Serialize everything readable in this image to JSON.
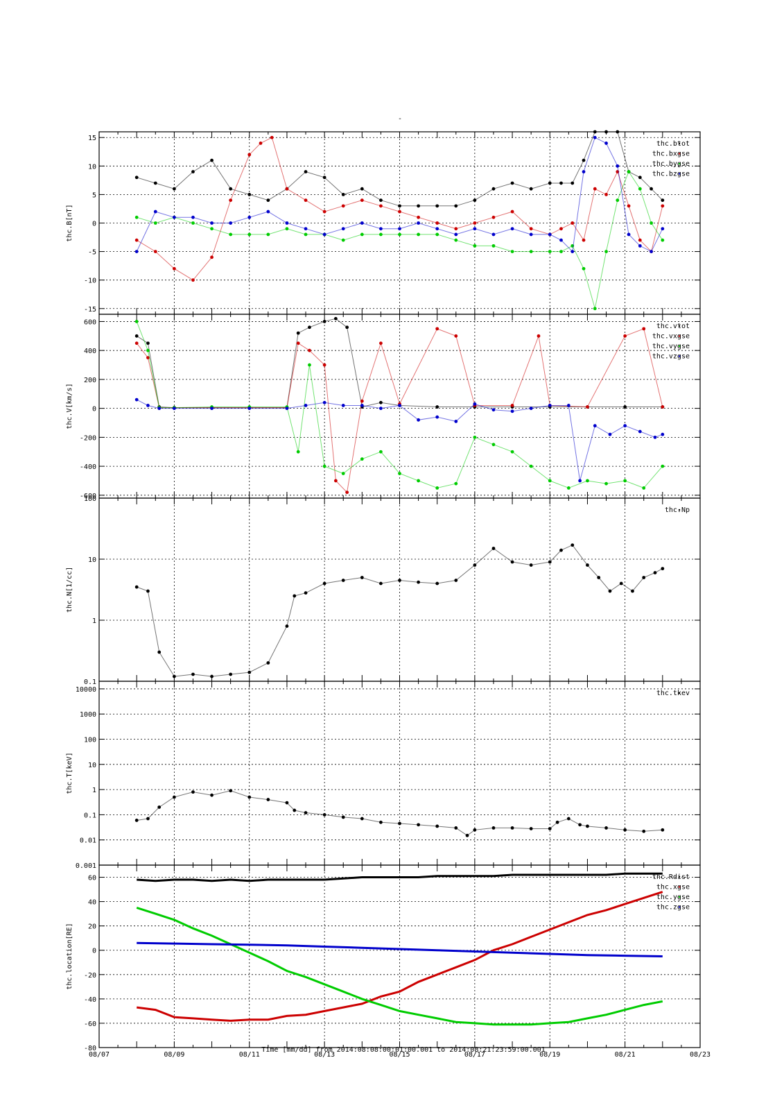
{
  "figure": {
    "title": "-",
    "xlabel": "Time [mm/dd]  from 2014:08:08:00:01:00.001  to  2014:08:21:23:59:00.001"
  },
  "chart_data": [
    {
      "type": "scatter",
      "ylabel": "thc.B[nT]",
      "yscale": "linear",
      "ylim": [
        -16,
        16
      ],
      "yticks": [
        -15,
        -10,
        -5,
        0,
        5,
        10,
        15
      ],
      "xlim": [
        7,
        23
      ],
      "xticks": [
        "08/07",
        "08/09",
        "08/11",
        "08/13",
        "08/15",
        "08/17",
        "08/19",
        "08/21",
        "08/23"
      ],
      "grid": true,
      "legend_position": "top-right",
      "series": [
        {
          "name": "thc.btot",
          "color": "#000000",
          "x": [
            8.0,
            8.5,
            9.0,
            9.5,
            10.0,
            10.5,
            11.0,
            11.5,
            12.0,
            12.5,
            13.0,
            13.5,
            14.0,
            14.5,
            15.0,
            15.5,
            16.0,
            16.5,
            17.0,
            17.5,
            18.0,
            18.5,
            19.0,
            19.3,
            19.6,
            19.9,
            20.2,
            20.5,
            20.8,
            21.1,
            21.4,
            21.7,
            22.0
          ],
          "y": [
            8,
            7,
            6,
            9,
            11,
            6,
            5,
            4,
            6,
            9,
            8,
            5,
            6,
            4,
            3,
            3,
            3,
            3,
            4,
            6,
            7,
            6,
            7,
            7,
            7,
            11,
            16,
            16,
            16,
            9,
            8,
            6,
            4
          ]
        },
        {
          "name": "thc.bxgse",
          "color": "#cc0000",
          "x": [
            8.0,
            8.5,
            9.0,
            9.5,
            10.0,
            10.5,
            11.0,
            11.3,
            11.6,
            12.0,
            12.5,
            13.0,
            13.5,
            14.0,
            14.5,
            15.0,
            15.5,
            16.0,
            16.5,
            17.0,
            17.5,
            18.0,
            18.5,
            19.0,
            19.3,
            19.6,
            19.9,
            20.2,
            20.5,
            20.8,
            21.1,
            21.4,
            21.7,
            22.0
          ],
          "y": [
            -3,
            -5,
            -8,
            -10,
            -6,
            4,
            12,
            14,
            15,
            6,
            4,
            2,
            3,
            4,
            3,
            2,
            1,
            0,
            -1,
            0,
            1,
            2,
            -1,
            -2,
            -1,
            0,
            -3,
            6,
            5,
            9,
            3,
            -3,
            -5,
            3
          ]
        },
        {
          "name": "thc.bygse",
          "color": "#00cc00",
          "x": [
            8.0,
            8.5,
            9.0,
            9.5,
            10.0,
            10.5,
            11.0,
            11.5,
            12.0,
            12.5,
            13.0,
            13.5,
            14.0,
            14.5,
            15.0,
            15.5,
            16.0,
            16.5,
            17.0,
            17.5,
            18.0,
            18.5,
            19.0,
            19.3,
            19.6,
            19.9,
            20.2,
            20.5,
            20.8,
            21.1,
            21.4,
            21.7,
            22.0
          ],
          "y": [
            1,
            0,
            1,
            0,
            -1,
            -2,
            -2,
            -2,
            -1,
            -2,
            -2,
            -3,
            -2,
            -2,
            -2,
            -2,
            -2,
            -3,
            -4,
            -4,
            -5,
            -5,
            -5,
            -5,
            -4,
            -8,
            -15,
            -5,
            4,
            9,
            6,
            0,
            -3
          ]
        },
        {
          "name": "thc.bzgse",
          "color": "#0000cc",
          "x": [
            8.0,
            8.5,
            9.0,
            9.5,
            10.0,
            10.5,
            11.0,
            11.5,
            12.0,
            12.5,
            13.0,
            13.5,
            14.0,
            14.5,
            15.0,
            15.5,
            16.0,
            16.5,
            17.0,
            17.5,
            18.0,
            18.5,
            19.0,
            19.3,
            19.6,
            19.9,
            20.2,
            20.5,
            20.8,
            21.1,
            21.4,
            21.7,
            22.0
          ],
          "y": [
            -5,
            2,
            1,
            1,
            0,
            0,
            1,
            2,
            0,
            -1,
            -2,
            -1,
            0,
            -1,
            -1,
            0,
            -1,
            -2,
            -1,
            -2,
            -1,
            -2,
            -2,
            -3,
            -5,
            9,
            15,
            14,
            10,
            -2,
            -4,
            -5,
            -1
          ]
        }
      ]
    },
    {
      "type": "scatter",
      "ylabel": "thc.V[km/s]",
      "yscale": "linear",
      "ylim": [
        -620,
        650
      ],
      "yticks": [
        -600,
        -400,
        -200,
        0,
        200,
        400,
        600
      ],
      "xlim": [
        7,
        23
      ],
      "grid": true,
      "legend_position": "top-right",
      "series": [
        {
          "name": "thc.vtot",
          "color": "#000000",
          "x": [
            8.0,
            8.3,
            8.6,
            9.0,
            10.0,
            11.0,
            12.0,
            12.3,
            12.6,
            13.0,
            13.3,
            13.6,
            14.0,
            14.5,
            15.0,
            16.0,
            17.0,
            18.0,
            19.0,
            20.0,
            21.0,
            22.0
          ],
          "y": [
            500,
            450,
            10,
            5,
            5,
            5,
            5,
            520,
            560,
            600,
            620,
            560,
            10,
            40,
            20,
            10,
            10,
            10,
            10,
            10,
            10,
            10
          ]
        },
        {
          "name": "thc.vxgse",
          "color": "#cc0000",
          "x": [
            8.0,
            8.3,
            8.6,
            9.0,
            10.0,
            11.0,
            12.0,
            12.3,
            12.6,
            13.0,
            13.3,
            13.6,
            14.0,
            14.5,
            15.0,
            16.0,
            16.5,
            17.0,
            18.0,
            18.7,
            19.0,
            20.0,
            21.0,
            21.5,
            22.0
          ],
          "y": [
            450,
            350,
            5,
            5,
            5,
            5,
            5,
            450,
            400,
            300,
            -500,
            -580,
            50,
            450,
            30,
            550,
            500,
            20,
            20,
            500,
            20,
            10,
            500,
            550,
            10
          ]
        },
        {
          "name": "thc.vygse",
          "color": "#00cc00",
          "x": [
            8.0,
            8.3,
            8.6,
            9.0,
            10.0,
            11.0,
            12.0,
            12.3,
            12.6,
            13.0,
            13.5,
            14.0,
            14.5,
            15.0,
            15.5,
            16.0,
            16.5,
            17.0,
            17.5,
            18.0,
            18.5,
            19.0,
            19.5,
            20.0,
            20.5,
            21.0,
            21.5,
            22.0
          ],
          "y": [
            600,
            400,
            5,
            5,
            10,
            10,
            10,
            -300,
            300,
            -400,
            -450,
            -350,
            -300,
            -450,
            -500,
            -550,
            -520,
            -200,
            -250,
            -300,
            -400,
            -500,
            -550,
            -500,
            -520,
            -500,
            -550,
            -400
          ]
        },
        {
          "name": "thc.vzgse",
          "color": "#0000cc",
          "x": [
            8.0,
            8.3,
            8.6,
            9.0,
            10.0,
            11.0,
            12.0,
            12.5,
            13.0,
            13.5,
            14.0,
            14.5,
            15.0,
            15.5,
            16.0,
            16.5,
            17.0,
            17.5,
            18.0,
            18.5,
            19.0,
            19.5,
            19.8,
            20.2,
            20.6,
            21.0,
            21.4,
            21.8,
            22.0
          ],
          "y": [
            60,
            20,
            0,
            0,
            0,
            0,
            0,
            20,
            40,
            20,
            20,
            0,
            20,
            -80,
            -60,
            -90,
            30,
            -10,
            -20,
            0,
            20,
            20,
            -500,
            -120,
            -180,
            -120,
            -160,
            -200,
            -180
          ]
        }
      ]
    },
    {
      "type": "scatter",
      "ylabel": "thc.N[1/cc]",
      "yscale": "log",
      "ylim": [
        0.1,
        100
      ],
      "yticks": [
        0.1,
        1,
        10,
        100
      ],
      "ytick_labels": [
        "0.1",
        "1",
        "10",
        "100"
      ],
      "xlim": [
        7,
        23
      ],
      "grid": true,
      "legend_position": "top-right",
      "series": [
        {
          "name": "thc.Np",
          "color": "#000000",
          "x": [
            8.0,
            8.3,
            8.6,
            9.0,
            9.5,
            10.0,
            10.5,
            11.0,
            11.5,
            12.0,
            12.2,
            12.5,
            13.0,
            13.5,
            14.0,
            14.5,
            15.0,
            15.5,
            16.0,
            16.5,
            17.0,
            17.5,
            18.0,
            18.5,
            19.0,
            19.3,
            19.6,
            20.0,
            20.3,
            20.6,
            20.9,
            21.2,
            21.5,
            21.8,
            22.0
          ],
          "y": [
            3.5,
            3.0,
            0.3,
            0.12,
            0.13,
            0.12,
            0.13,
            0.14,
            0.2,
            0.8,
            2.5,
            2.8,
            4.0,
            4.5,
            5.0,
            4.0,
            4.5,
            4.2,
            4.0,
            4.5,
            8.0,
            15.0,
            9.0,
            8.0,
            9.0,
            14.0,
            17.0,
            8.0,
            5.0,
            3.0,
            4.0,
            3.0,
            5.0,
            6.0,
            7.0
          ]
        }
      ]
    },
    {
      "type": "scatter",
      "ylabel": "thc.T[keV]",
      "yscale": "log",
      "ylim": [
        0.001,
        20000
      ],
      "yticks": [
        0.001,
        0.01,
        0.1,
        1,
        10,
        100,
        1000,
        10000
      ],
      "ytick_labels": [
        "0.001",
        "0.01",
        "0.1",
        "1",
        "10",
        "100",
        "1000",
        "10000"
      ],
      "xlim": [
        7,
        23
      ],
      "grid": true,
      "legend_position": "top-right",
      "series": [
        {
          "name": "thc.tkev",
          "color": "#000000",
          "x": [
            8.0,
            8.3,
            8.6,
            9.0,
            9.5,
            10.0,
            10.5,
            11.0,
            11.5,
            12.0,
            12.2,
            12.5,
            13.0,
            13.5,
            14.0,
            14.5,
            15.0,
            15.5,
            16.0,
            16.5,
            16.8,
            17.0,
            17.5,
            18.0,
            18.5,
            19.0,
            19.2,
            19.5,
            19.8,
            20.0,
            20.5,
            21.0,
            21.5,
            22.0
          ],
          "y": [
            0.06,
            0.07,
            0.2,
            0.5,
            0.8,
            0.6,
            0.9,
            0.5,
            0.4,
            0.3,
            0.15,
            0.12,
            0.1,
            0.08,
            0.07,
            0.05,
            0.045,
            0.04,
            0.035,
            0.03,
            0.015,
            0.025,
            0.03,
            0.03,
            0.028,
            0.028,
            0.05,
            0.07,
            0.04,
            0.035,
            0.03,
            0.025,
            0.022,
            0.025
          ]
        }
      ]
    },
    {
      "type": "line",
      "ylabel": "thc.location[RE]",
      "yscale": "linear",
      "ylim": [
        -80,
        70
      ],
      "yticks": [
        -80,
        -60,
        -40,
        -20,
        0,
        20,
        40,
        60
      ],
      "xlim": [
        7,
        23
      ],
      "xticks": [
        "08/07",
        "08/09",
        "08/11",
        "08/13",
        "08/15",
        "08/17",
        "08/19",
        "08/21",
        "08/23"
      ],
      "grid": true,
      "legend_position": "top-right",
      "series": [
        {
          "name": "thc.Rdist",
          "color": "#000000",
          "x": [
            8.0,
            8.5,
            9.0,
            9.5,
            10.0,
            10.5,
            11.0,
            11.5,
            12.0,
            12.5,
            13.0,
            13.5,
            14.0,
            14.5,
            15.0,
            15.5,
            16.0,
            16.5,
            17.0,
            17.5,
            18.0,
            18.5,
            19.0,
            19.5,
            20.0,
            20.5,
            21.0,
            21.5,
            22.0
          ],
          "y": [
            58,
            57,
            58,
            58,
            57,
            58,
            57,
            58,
            58,
            58,
            58,
            59,
            60,
            60,
            60,
            60,
            61,
            61,
            61,
            61,
            62,
            62,
            62,
            62,
            62,
            62,
            63,
            63,
            63
          ]
        },
        {
          "name": "thc.xgse",
          "color": "#cc0000",
          "x": [
            8.0,
            8.5,
            9.0,
            9.5,
            10.0,
            10.5,
            11.0,
            11.5,
            12.0,
            12.5,
            13.0,
            13.5,
            14.0,
            14.5,
            15.0,
            15.5,
            16.0,
            16.5,
            17.0,
            17.5,
            18.0,
            18.5,
            19.0,
            19.5,
            20.0,
            20.5,
            21.0,
            21.5,
            22.0
          ],
          "y": [
            -47,
            -49,
            -55,
            -56,
            -57,
            -58,
            -57,
            -57,
            -54,
            -53,
            -50,
            -47,
            -44,
            -38,
            -34,
            -26,
            -20,
            -14,
            -8,
            0,
            5,
            11,
            17,
            23,
            29,
            33,
            38,
            43,
            48
          ]
        },
        {
          "name": "thc.ygse",
          "color": "#00cc00",
          "x": [
            8.0,
            8.5,
            9.0,
            9.5,
            10.0,
            10.5,
            11.0,
            11.5,
            12.0,
            12.5,
            13.0,
            13.5,
            14.0,
            14.5,
            15.0,
            15.5,
            16.0,
            16.5,
            17.0,
            17.5,
            18.0,
            18.5,
            19.0,
            19.5,
            20.0,
            20.5,
            21.0,
            21.5,
            22.0
          ],
          "y": [
            35,
            30,
            25,
            18,
            12,
            5,
            -2,
            -9,
            -17,
            -22,
            -28,
            -34,
            -40,
            -45,
            -50,
            -53,
            -56,
            -59,
            -60,
            -61,
            -61,
            -61,
            -60,
            -59,
            -56,
            -53,
            -49,
            -45,
            -42
          ]
        },
        {
          "name": "thc.zgse",
          "color": "#0000cc",
          "x": [
            8.0,
            9.0,
            10.0,
            11.0,
            12.0,
            13.0,
            14.0,
            15.0,
            16.0,
            17.0,
            18.0,
            19.0,
            20.0,
            21.0,
            22.0
          ],
          "y": [
            6,
            5.5,
            5,
            4.5,
            4,
            3,
            2,
            1,
            0,
            -1,
            -2,
            -3,
            -4,
            -4.5,
            -5
          ]
        }
      ]
    }
  ]
}
